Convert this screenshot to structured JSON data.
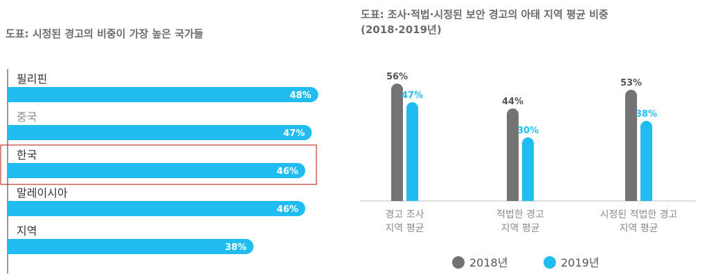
{
  "chart_data": [
    {
      "type": "bar",
      "orientation": "horizontal",
      "title": "도표: 시정된 경고의 비중이 가장 높은 국가들",
      "categories": [
        "필리핀",
        "중국",
        "한국",
        "말레이시아",
        "지역"
      ],
      "values": [
        48,
        47,
        46,
        46,
        38
      ],
      "value_labels": [
        "48%",
        "47%",
        "46%",
        "46%",
        "38%"
      ],
      "highlighted_category": "한국",
      "bar_color": "#22bdf0",
      "highlight_box_color": "#c0392b",
      "xlim": [
        0,
        52
      ]
    },
    {
      "type": "bar",
      "title_line1": "도표: 조사·적법·시정된 보안 경고의 아태 지역 평균 비중",
      "title_line2": "(2018·2019년)",
      "categories": [
        [
          "경고 조사",
          "지역 평균"
        ],
        [
          "적법한 경고",
          "지역 평균"
        ],
        [
          "시정된 적법한 경고",
          "지역 평균"
        ]
      ],
      "series": [
        {
          "name": "2018년",
          "values": [
            56,
            44,
            53
          ],
          "labels": [
            "56%",
            "44%",
            "53%"
          ],
          "color": "#737373"
        },
        {
          "name": "2019년",
          "values": [
            47,
            30,
            38
          ],
          "labels": [
            "47%",
            "30%",
            "38%"
          ],
          "color": "#22bdf0"
        }
      ],
      "ylim": [
        0,
        60
      ],
      "legend_position": "bottom"
    }
  ]
}
